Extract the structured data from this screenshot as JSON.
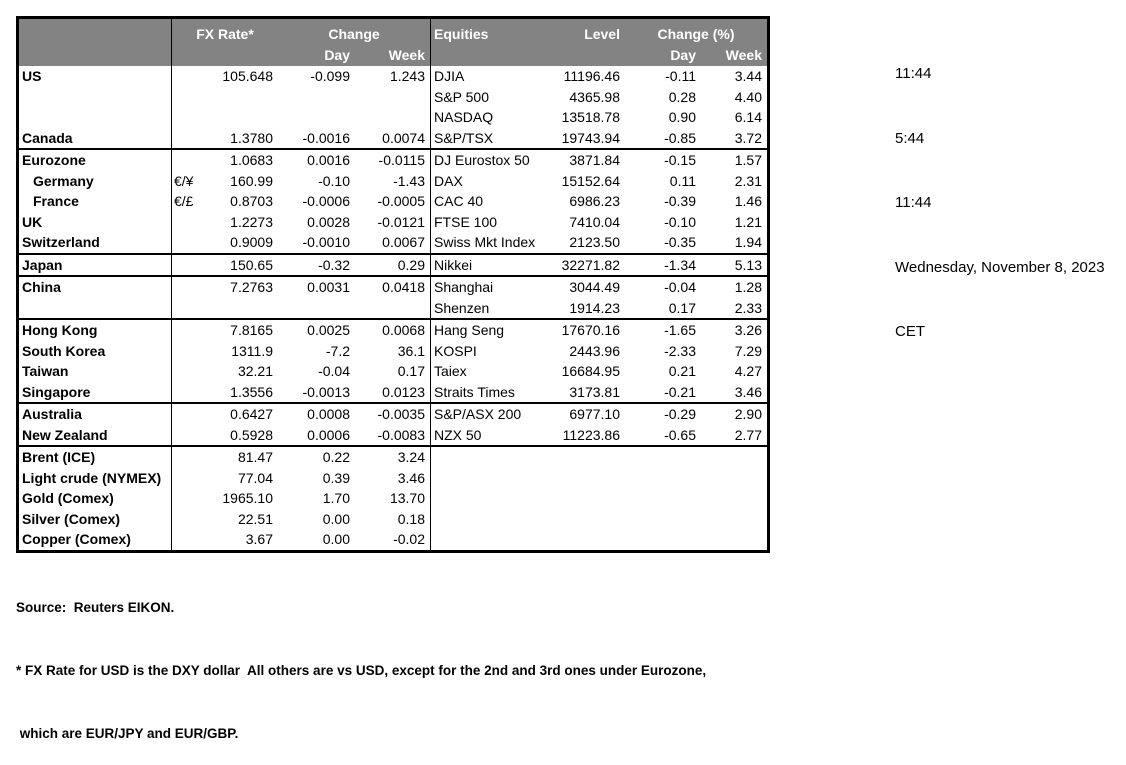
{
  "header": {
    "fx_rate": "FX Rate*",
    "change": "Change",
    "day": "Day",
    "week": "Week",
    "equities": "Equities",
    "level": "Level",
    "change_pct": "Change (%)"
  },
  "colors": {
    "header_bg": "#838383",
    "header_text": "#ffffff",
    "border": "#000000"
  },
  "groups": [
    {
      "rows": [
        {
          "name": "US",
          "pair": "",
          "rate": "105.648",
          "day": "-0.099",
          "week": "1.243",
          "eq": "DJIA",
          "level": "11196.46",
          "eday": "-0.11",
          "eweek": "3.44"
        },
        {
          "name": "",
          "pair": "",
          "rate": "",
          "day": "",
          "week": "",
          "eq": "S&P 500",
          "level": "4365.98",
          "eday": "0.28",
          "eweek": "4.40"
        },
        {
          "name": "",
          "pair": "",
          "rate": "",
          "day": "",
          "week": "",
          "eq": "NASDAQ",
          "level": "13518.78",
          "eday": "0.90",
          "eweek": "6.14"
        },
        {
          "name": "Canada",
          "pair": "",
          "rate": "1.3780",
          "day": "-0.0016",
          "week": "0.0074",
          "eq": "S&P/TSX",
          "level": "19743.94",
          "eday": "-0.85",
          "eweek": "3.72"
        }
      ]
    },
    {
      "rows": [
        {
          "name": "Eurozone",
          "pair": "",
          "rate": "1.0683",
          "day": "0.0016",
          "week": "-0.0115",
          "eq": "DJ Eurostox 50",
          "level": "3871.84",
          "eday": "-0.15",
          "eweek": "1.57"
        },
        {
          "name": "Germany",
          "indent": true,
          "pair": "€/¥",
          "rate": "160.99",
          "day": "-0.10",
          "week": "-1.43",
          "eq": "DAX",
          "level": "15152.64",
          "eday": "0.11",
          "eweek": "2.31"
        },
        {
          "name": "France",
          "indent": true,
          "pair": "€/£",
          "rate": "0.8703",
          "day": "-0.0006",
          "week": "-0.0005",
          "eq": "CAC 40",
          "level": "6986.23",
          "eday": "-0.39",
          "eweek": "1.46"
        },
        {
          "name": "UK",
          "pair": "",
          "rate": "1.2273",
          "day": "0.0028",
          "week": "-0.0121",
          "eq": "FTSE 100",
          "level": "7410.04",
          "eday": "-0.10",
          "eweek": "1.21"
        },
        {
          "name": "Switzerland",
          "pair": "",
          "rate": "0.9009",
          "day": "-0.0010",
          "week": "0.0067",
          "eq": "Swiss Mkt Index",
          "level": "2123.50",
          "eday": "-0.35",
          "eweek": "1.94"
        }
      ]
    },
    {
      "rows": [
        {
          "name": "Japan",
          "pair": "",
          "rate": "150.65",
          "day": "-0.32",
          "week": "0.29",
          "eq": "Nikkei",
          "level": "32271.82",
          "eday": "-1.34",
          "eweek": "5.13"
        }
      ]
    },
    {
      "rows": [
        {
          "name": "China",
          "pair": "",
          "rate": "7.2763",
          "day": "0.0031",
          "week": "0.0418",
          "eq": "Shanghai",
          "level": "3044.49",
          "eday": "-0.04",
          "eweek": "1.28"
        },
        {
          "name": "",
          "pair": "",
          "rate": "",
          "day": "",
          "week": "",
          "eq": "Shenzen",
          "level": "1914.23",
          "eday": "0.17",
          "eweek": "2.33"
        }
      ]
    },
    {
      "rows": [
        {
          "name": "Hong Kong",
          "pair": "",
          "rate": "7.8165",
          "day": "0.0025",
          "week": "0.0068",
          "eq": "Hang Seng",
          "level": "17670.16",
          "eday": "-1.65",
          "eweek": "3.26"
        },
        {
          "name": "South Korea",
          "pair": "",
          "rate": "1311.9",
          "day": "-7.2",
          "week": "36.1",
          "eq": "KOSPI",
          "level": "2443.96",
          "eday": "-2.33",
          "eweek": "7.29"
        },
        {
          "name": "Taiwan",
          "pair": "",
          "rate": "32.21",
          "day": "-0.04",
          "week": "0.17",
          "eq": "Taiex",
          "level": "16684.95",
          "eday": "0.21",
          "eweek": "4.27"
        },
        {
          "name": "Singapore",
          "pair": "",
          "rate": "1.3556",
          "day": "-0.0013",
          "week": "0.0123",
          "eq": "Straits Times",
          "level": "3173.81",
          "eday": "-0.21",
          "eweek": "3.46"
        }
      ]
    },
    {
      "rows": [
        {
          "name": "Australia",
          "pair": "",
          "rate": "0.6427",
          "day": "0.0008",
          "week": "-0.0035",
          "eq": "S&P/ASX  200",
          "level": "6977.10",
          "eday": "-0.29",
          "eweek": "2.90"
        },
        {
          "name": "New Zealand",
          "pair": "",
          "rate": "0.5928",
          "day": "0.0006",
          "week": "-0.0083",
          "eq": "NZX 50",
          "level": "11223.86",
          "eday": "-0.65",
          "eweek": "2.77"
        }
      ]
    },
    {
      "rows": [
        {
          "name": "Brent (ICE)",
          "pair": "",
          "rate": "81.47",
          "day": "0.22",
          "week": "3.24",
          "eq": "",
          "level": "",
          "eday": "",
          "eweek": ""
        },
        {
          "name": "Light crude (NYMEX)",
          "pair": "",
          "rate": "77.04",
          "day": "0.39",
          "week": "3.46",
          "eq": "",
          "level": "",
          "eday": "",
          "eweek": ""
        },
        {
          "name": "Gold (Comex)",
          "pair": "",
          "rate": "1965.10",
          "day": "1.70",
          "week": "13.70",
          "eq": "",
          "level": "",
          "eday": "",
          "eweek": ""
        },
        {
          "name": "Silver (Comex)",
          "pair": "",
          "rate": "22.51",
          "day": "0.00",
          "week": "0.18",
          "eq": "",
          "level": "",
          "eday": "",
          "eweek": ""
        },
        {
          "name": "Copper (Comex)",
          "pair": "",
          "rate": "3.67",
          "day": "0.00",
          "week": "-0.02",
          "eq": "",
          "level": "",
          "eday": "",
          "eweek": ""
        }
      ]
    }
  ],
  "timestamps": {
    "lines": [
      "11:44",
      "5:44",
      "11:44",
      "Wednesday, November 8, 2023",
      "CET"
    ]
  },
  "footer": {
    "source": "Source:  Reuters EIKON.",
    "footnote_line1": "* FX Rate for USD is the DXY dollar  All others are vs USD, except for the 2nd and 3rd ones under Eurozone,",
    "footnote_line2": " which are EUR/JPY and EUR/GBP."
  }
}
